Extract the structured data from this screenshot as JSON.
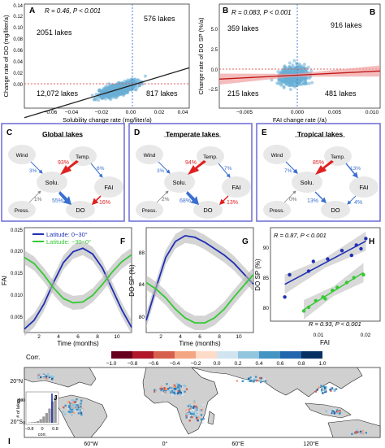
{
  "panels": {
    "A": {
      "letter": "A",
      "stat": "R = 0.46, P < 0.001",
      "quadrants": [
        "2051 lakes",
        "576 lakes",
        "12,072 lakes",
        "817 lakes"
      ],
      "xlabel": "Solubility change rate (mg/liter/a)",
      "ylabel": "Change rate of DO (mg/liter/a)",
      "xticks": [
        "−0.06",
        "−0.04",
        "−0.02",
        "0.00",
        "0.02",
        "0.04"
      ],
      "yticks": [
        "0.00",
        "0.02",
        "0.04",
        "0.06",
        "0.08",
        "0.10",
        "0.12",
        "0.14"
      ]
    },
    "B": {
      "letter": "B",
      "stat": "R = 0.083, P < 0.001",
      "quadrants": [
        "359 lakes",
        "916 lakes",
        "215 lakes",
        "481 lakes"
      ],
      "xlabel": "FAI change rate (/a)",
      "ylabel": "Change rate of DO SP (%/a)",
      "xticks": [
        "−0.005",
        "0.000",
        "0.005",
        "0.010"
      ],
      "yticks": [
        "−2.5",
        "0.0",
        "2.5",
        "5.0"
      ]
    },
    "C": {
      "letter": "C",
      "title": "Global lakes",
      "nodes": {
        "wind": "Wind",
        "temp": "Temp.",
        "solu": "Solu.",
        "fai": "FAI",
        "press": "Press.",
        "do": "DO"
      },
      "edges": {
        "wind": "3%",
        "temp_solu": "93%",
        "temp_fai": "6%",
        "press": "1%",
        "solu_do": "55%",
        "fai_do": "16%"
      }
    },
    "D": {
      "letter": "D",
      "title": "Temperate lakes",
      "nodes": {
        "wind": "Wind",
        "temp": "Temp.",
        "solu": "Solu.",
        "fai": "FAI",
        "press": "Press.",
        "do": "DO"
      },
      "edges": {
        "wind": "3%",
        "temp_solu": "94%",
        "temp_fai": "7%",
        "press": "2%",
        "solu_do": "68%",
        "fai_do": "13%"
      }
    },
    "E": {
      "letter": "E",
      "title": "Tropical lakes",
      "nodes": {
        "wind": "Wind",
        "temp": "Temp.",
        "solu": "Solu.",
        "fai": "FAI",
        "press": "Press.",
        "do": "DO"
      },
      "edges": {
        "wind": "7%",
        "temp_solu": "85%",
        "temp_fai": "13%",
        "press": "0%",
        "solu_do": "13%",
        "fai_do": "4%"
      }
    },
    "F": {
      "letter": "F",
      "ylabel": "FAI",
      "xlabel": "Time (months)",
      "legend": [
        "Latitude: 0~30°",
        "Latitude: −30~0°"
      ],
      "xticks": [
        "2",
        "4",
        "6",
        "8",
        "10"
      ],
      "yticks": [
        "0.005",
        "0.010",
        "0.015",
        "0.020",
        "0.025"
      ]
    },
    "G": {
      "letter": "G",
      "ylabel": "DO SP (%)",
      "xlabel": "Time (months)",
      "xticks": [
        "2",
        "4",
        "6",
        "8",
        "10"
      ],
      "yticks": [
        "80",
        "84",
        "88"
      ]
    },
    "H": {
      "letter": "H",
      "ylabel": "DO SP (%)",
      "xlabel": "FAI",
      "stat_blue": "R = 0.87, P < 0.001",
      "stat_green": "R = 0.93, P < 0.001",
      "xticks": [
        "0.01",
        "0.02"
      ],
      "yticks": [
        "80",
        "85",
        "90"
      ]
    },
    "I": {
      "letter": "I",
      "colorbar_title": "Corr.",
      "colorbar_ticks": [
        "−1.0",
        "−0.8",
        "−0.6",
        "−0.4",
        "−0.2",
        "0.0",
        "0.2",
        "0.4",
        "0.6",
        "0.8",
        "1.0"
      ],
      "colorbar_colors": [
        "#67001f",
        "#b2182b",
        "#d6604d",
        "#f4a582",
        "#fddbc7",
        "#d1e5f0",
        "#92c5de",
        "#4393c3",
        "#2166ac",
        "#053061"
      ],
      "lat_labels": [
        "20°N",
        "0°",
        "20°S"
      ],
      "lon_labels": [
        "60°W",
        "0°",
        "60°E",
        "120°E"
      ]
    },
    "J": {
      "letter": "J",
      "ylabel": "# of lakes",
      "xlabel": "corr.",
      "xticks": [
        "−0.8",
        "0",
        "0.8"
      ],
      "yticks": [
        "200",
        "0"
      ]
    }
  },
  "colors": {
    "point": "#6aaed6",
    "blue": "#1f2fb5",
    "green": "#35c935",
    "red": "#e02020",
    "ref_line_red": "#e06060",
    "ref_line_blue": "#4a7fd0",
    "node_fill": "#e8e8e8",
    "box_border": "#6b6bd6",
    "land": "#d0d0d0"
  },
  "chart_data": [
    {
      "id": "A",
      "type": "scatter",
      "xlabel": "Solubility change rate (mg/liter/a)",
      "ylabel": "Change rate of DO (mg/liter/a)",
      "xlim": [
        -0.07,
        0.045
      ],
      "ylim": [
        -0.03,
        0.15
      ],
      "fit": {
        "slope": 0.75,
        "intercept": 0.006
      }
    },
    {
      "id": "B",
      "type": "scatter",
      "xlabel": "FAI change rate (/a)",
      "ylabel": "Change rate of DO SP (%/a)",
      "xlim": [
        -0.008,
        0.011
      ],
      "ylim": [
        -2.5,
        6.0
      ],
      "fit": {
        "slope": 35,
        "intercept": 0.15
      }
    },
    {
      "id": "F",
      "type": "line",
      "xlabel": "Time (months)",
      "ylabel": "FAI",
      "xlim": [
        1,
        12
      ],
      "ylim": [
        0.002,
        0.026
      ],
      "x": [
        1,
        2,
        3,
        4,
        5,
        6,
        7,
        8,
        9,
        10,
        11,
        12
      ],
      "series": [
        {
          "name": "Latitude: 0~30°",
          "values": [
            0.0028,
            0.0048,
            0.0085,
            0.0135,
            0.018,
            0.0205,
            0.0213,
            0.02,
            0.0168,
            0.012,
            0.0072,
            0.0032
          ]
        },
        {
          "name": "Latitude: −30~0°",
          "values": [
            0.0192,
            0.0178,
            0.0152,
            0.0122,
            0.0098,
            0.0088,
            0.009,
            0.0105,
            0.013,
            0.0158,
            0.0182,
            0.0198
          ]
        }
      ]
    },
    {
      "id": "G",
      "type": "line",
      "xlabel": "Time (months)",
      "ylabel": "DO SP (%)",
      "xlim": [
        1,
        12
      ],
      "ylim": [
        78,
        91
      ],
      "x": [
        1,
        2,
        3,
        4,
        5,
        6,
        7,
        8,
        9,
        10,
        11,
        12
      ],
      "series": [
        {
          "name": "Latitude: 0~30°",
          "values": [
            79.5,
            83.5,
            87.3,
            89.3,
            90.0,
            89.8,
            89.2,
            88.4,
            87.6,
            86.6,
            85.3,
            84.0
          ]
        },
        {
          "name": "Latitude: −30~0°",
          "values": [
            84.2,
            83.4,
            82.3,
            80.9,
            79.8,
            79.2,
            79.2,
            79.8,
            80.9,
            82.4,
            83.8,
            85.2
          ]
        }
      ]
    },
    {
      "id": "H",
      "type": "scatter",
      "xlabel": "FAI",
      "ylabel": "DO SP (%)",
      "xlim": [
        0.002,
        0.025
      ],
      "ylim": [
        77.5,
        93
      ],
      "series": [
        {
          "name": "Latitude: 0~30°",
          "x": [
            0.005,
            0.006,
            0.01,
            0.011,
            0.014,
            0.017,
            0.019,
            0.02,
            0.021,
            0.022
          ],
          "y": [
            81.5,
            85.2,
            85.8,
            87.4,
            87.8,
            89.2,
            88.4,
            90.1,
            89.5,
            91.2
          ]
        },
        {
          "name": "Latitude: −30~0°",
          "x": [
            0.009,
            0.01,
            0.0115,
            0.013,
            0.0135,
            0.015,
            0.016,
            0.018,
            0.0195,
            0.0215
          ],
          "y": [
            79.2,
            79.8,
            80.9,
            81.5,
            81.2,
            82.6,
            83.1,
            83.9,
            84.7,
            85.2
          ]
        }
      ]
    },
    {
      "id": "J",
      "type": "bar",
      "xlabel": "corr.",
      "ylabel": "# of lakes",
      "xlim": [
        -1,
        1
      ],
      "ylim": [
        0,
        320
      ],
      "categories": [
        "-0.9",
        "-0.7",
        "-0.5",
        "-0.3",
        "-0.1",
        "0.1",
        "0.3",
        "0.5",
        "0.7",
        "0.9"
      ],
      "values": [
        4,
        6,
        10,
        18,
        40,
        70,
        110,
        160,
        240,
        300
      ]
    }
  ]
}
